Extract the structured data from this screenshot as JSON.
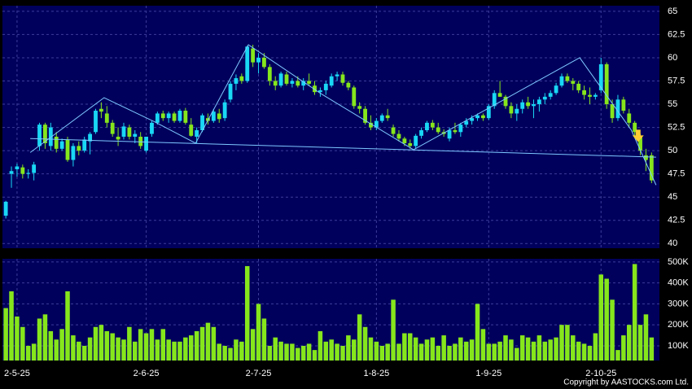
{
  "chart_data": [
    {
      "type": "candlestick",
      "xlim": [
        -0.6,
        116.4
      ],
      "xticks": [
        {
          "value": 2,
          "label": "2-5-25"
        },
        {
          "value": 25,
          "label": "2-6-25"
        },
        {
          "value": 45,
          "label": "2-7-25"
        },
        {
          "value": 66,
          "label": "1-8-25"
        },
        {
          "value": 86,
          "label": "1-9-25"
        },
        {
          "value": 106,
          "label": "2-10-25"
        }
      ],
      "ylim": [
        39.5,
        65.6
      ],
      "yticks": [
        40,
        42.5,
        45,
        47.5,
        50,
        52.5,
        55,
        57.5,
        60,
        62.5,
        65
      ],
      "grid": true,
      "up_color": "#19d7f5",
      "down_color": "#86e61c",
      "ohlc": [
        [
          43.0,
          44.6,
          42.7,
          44.5
        ],
        [
          47.5,
          48.3,
          46.0,
          47.8
        ],
        [
          48.0,
          48.6,
          47.2,
          48.3
        ],
        [
          48.2,
          48.5,
          47.0,
          47.5
        ],
        [
          47.5,
          48.0,
          47.0,
          47.6
        ],
        [
          47.6,
          48.8,
          46.8,
          48.5
        ],
        [
          50.5,
          53.0,
          50.0,
          52.8
        ],
        [
          52.8,
          53.0,
          50.2,
          50.8
        ],
        [
          50.5,
          53.0,
          50.0,
          52.5
        ],
        [
          51.5,
          52.0,
          49.8,
          50.2
        ],
        [
          50.2,
          51.3,
          50.0,
          51.0
        ],
        [
          51.2,
          51.5,
          48.8,
          49.0
        ],
        [
          49.0,
          50.8,
          48.3,
          50.5
        ],
        [
          50.5,
          51.0,
          49.5,
          50.0
        ],
        [
          50.0,
          51.5,
          49.8,
          51.2
        ],
        [
          51.0,
          52.0,
          49.6,
          51.8
        ],
        [
          52.0,
          54.5,
          51.8,
          54.3
        ],
        [
          54.5,
          55.2,
          53.5,
          54.2
        ],
        [
          54.0,
          54.8,
          52.5,
          53.0
        ],
        [
          53.0,
          53.3,
          51.5,
          51.8
        ],
        [
          51.5,
          52.5,
          50.5,
          51.2
        ],
        [
          51.5,
          53.0,
          51.2,
          52.6
        ],
        [
          52.5,
          52.8,
          51.2,
          51.5
        ],
        [
          51.5,
          52.2,
          50.8,
          51.8
        ],
        [
          51.5,
          52.0,
          50.2,
          50.5
        ],
        [
          50.0,
          51.5,
          49.8,
          51.5
        ],
        [
          51.8,
          53.2,
          51.5,
          53.0
        ],
        [
          53.0,
          54.2,
          52.8,
          54.0
        ],
        [
          54.0,
          54.3,
          53.2,
          53.5
        ],
        [
          53.5,
          54.2,
          53.0,
          54.0
        ],
        [
          54.0,
          54.2,
          53.0,
          53.2
        ],
        [
          53.2,
          54.5,
          53.0,
          54.3
        ],
        [
          54.3,
          54.6,
          52.8,
          53.0
        ],
        [
          52.8,
          53.5,
          51.5,
          51.6
        ],
        [
          51.5,
          52.5,
          50.8,
          52.2
        ],
        [
          52.2,
          54.0,
          52.0,
          53.8
        ],
        [
          53.5,
          54.0,
          52.8,
          53.2
        ],
        [
          53.2,
          54.5,
          53.0,
          54.2
        ],
        [
          54.0,
          54.5,
          53.0,
          53.4
        ],
        [
          53.5,
          55.5,
          53.2,
          55.2
        ],
        [
          55.5,
          57.5,
          55.2,
          57.2
        ],
        [
          57.2,
          58.2,
          56.5,
          57.8
        ],
        [
          58.0,
          58.3,
          57.2,
          57.5
        ],
        [
          57.5,
          61.3,
          57.3,
          61.2
        ],
        [
          61.0,
          61.4,
          59.0,
          59.5
        ],
        [
          59.5,
          60.5,
          58.3,
          60.0
        ],
        [
          60.0,
          60.5,
          58.8,
          59.0
        ],
        [
          59.0,
          59.3,
          57.0,
          57.5
        ],
        [
          57.5,
          58.0,
          56.5,
          57.0
        ],
        [
          57.0,
          58.5,
          56.8,
          58.3
        ],
        [
          58.2,
          58.5,
          57.0,
          57.2
        ],
        [
          57.2,
          57.8,
          56.8,
          57.5
        ],
        [
          57.5,
          58.0,
          56.8,
          57.0
        ],
        [
          57.0,
          57.8,
          56.5,
          57.5
        ],
        [
          57.5,
          58.3,
          57.0,
          57.2
        ],
        [
          57.0,
          57.5,
          56.0,
          56.3
        ],
        [
          56.3,
          56.8,
          55.8,
          56.5
        ],
        [
          56.5,
          57.5,
          56.0,
          57.2
        ],
        [
          57.0,
          58.3,
          56.8,
          58.0
        ],
        [
          58.0,
          58.5,
          57.5,
          58.2
        ],
        [
          58.2,
          58.5,
          57.0,
          57.3
        ],
        [
          57.3,
          57.5,
          56.5,
          56.8
        ],
        [
          56.8,
          57.0,
          54.5,
          54.8
        ],
        [
          54.8,
          55.2,
          54.0,
          54.5
        ],
        [
          54.5,
          54.8,
          52.8,
          53.0
        ],
        [
          53.0,
          53.8,
          52.2,
          52.5
        ],
        [
          52.5,
          53.5,
          52.2,
          53.2
        ],
        [
          53.2,
          54.0,
          53.0,
          53.8
        ],
        [
          53.8,
          54.5,
          53.2,
          53.5
        ],
        [
          52.5,
          52.8,
          51.5,
          51.8
        ],
        [
          51.8,
          52.2,
          51.0,
          51.3
        ],
        [
          51.3,
          51.5,
          50.5,
          50.8
        ],
        [
          50.8,
          51.2,
          50.2,
          50.5
        ],
        [
          50.5,
          51.8,
          50.2,
          51.6
        ],
        [
          51.6,
          52.5,
          51.3,
          52.2
        ],
        [
          52.2,
          53.2,
          52.0,
          53.0
        ],
        [
          53.0,
          53.3,
          52.2,
          52.5
        ],
        [
          52.5,
          53.0,
          51.8,
          52.0
        ],
        [
          52.0,
          52.3,
          51.5,
          51.8
        ],
        [
          51.3,
          52.5,
          51.0,
          52.2
        ],
        [
          52.2,
          53.0,
          51.8,
          52.0
        ],
        [
          52.0,
          53.0,
          51.5,
          52.8
        ],
        [
          52.8,
          53.5,
          52.5,
          53.2
        ],
        [
          53.2,
          53.8,
          52.8,
          53.5
        ],
        [
          53.5,
          54.0,
          53.2,
          53.8
        ],
        [
          53.8,
          54.0,
          53.2,
          53.5
        ],
        [
          53.5,
          55.0,
          53.3,
          54.8
        ],
        [
          54.8,
          56.5,
          54.5,
          56.2
        ],
        [
          56.2,
          57.5,
          55.8,
          55.8
        ],
        [
          55.8,
          56.0,
          54.5,
          54.8
        ],
        [
          54.8,
          55.2,
          53.5,
          54.0
        ],
        [
          54.0,
          55.0,
          53.2,
          54.5
        ],
        [
          54.5,
          55.5,
          54.0,
          55.2
        ],
        [
          55.2,
          55.8,
          54.5,
          54.8
        ],
        [
          54.8,
          55.5,
          53.5,
          55.0
        ],
        [
          55.0,
          55.8,
          54.2,
          55.5
        ],
        [
          55.5,
          56.2,
          55.0,
          55.8
        ],
        [
          55.8,
          56.5,
          55.5,
          56.2
        ],
        [
          56.2,
          57.3,
          56.0,
          57.0
        ],
        [
          57.0,
          58.3,
          56.8,
          58.0
        ],
        [
          58.0,
          58.3,
          57.3,
          57.5
        ],
        [
          57.5,
          57.8,
          56.5,
          57.2
        ],
        [
          57.2,
          57.5,
          56.2,
          56.5
        ],
        [
          56.5,
          57.0,
          55.5,
          56.0
        ],
        [
          56.0,
          56.8,
          55.0,
          55.8
        ],
        [
          55.8,
          56.2,
          55.5,
          56.0
        ],
        [
          56.5,
          60.0,
          56.2,
          59.3
        ],
        [
          59.3,
          59.5,
          54.5,
          55.0
        ],
        [
          55.0,
          55.5,
          53.0,
          53.5
        ],
        [
          53.5,
          56.0,
          53.2,
          55.5
        ],
        [
          55.5,
          55.8,
          54.0,
          54.3
        ],
        [
          54.0,
          54.5,
          52.5,
          53.0
        ],
        [
          53.0,
          53.2,
          51.5,
          52.0
        ],
        [
          51.5,
          51.8,
          49.5,
          50.0
        ],
        [
          49.5,
          50.2,
          47.8,
          49.0
        ],
        [
          49.5,
          49.8,
          46.5,
          46.8
        ]
      ],
      "trendlines": [
        {
          "color": "#7ec8ff",
          "points": [
            [
              4.35,
              51.3
            ],
            [
              115.8,
              49.3
            ]
          ]
        },
        {
          "color": "#7ec8ff",
          "points": [
            [
              4.35,
              49.8
            ],
            [
              17.5,
              55.7
            ],
            [
              26.5,
              53.1
            ],
            [
              33.8,
              50.8
            ],
            [
              43.2,
              61.4
            ],
            [
              56.2,
              56.1
            ],
            [
              72.6,
              50.1
            ],
            [
              102.2,
              60.0
            ],
            [
              111.4,
              52.2
            ],
            [
              115.8,
              46.3
            ]
          ]
        }
      ],
      "arrow": {
        "x": 112.6,
        "y": 51.2,
        "color": "#ffcc33"
      }
    },
    {
      "type": "bar",
      "xlim": [
        -0.6,
        116.4
      ],
      "xticks": [
        2,
        25,
        45,
        66,
        86,
        106
      ],
      "ylim": [
        30000,
        515000
      ],
      "yticks": [
        {
          "value": 100000,
          "label": "100K"
        },
        {
          "value": 200000,
          "label": "200K"
        },
        {
          "value": 300000,
          "label": "300K"
        },
        {
          "value": 400000,
          "label": "400K"
        },
        {
          "value": 500000,
          "label": "500K"
        }
      ],
      "grid": true,
      "color": "#86e61c",
      "values": [
        280000,
        360000,
        240000,
        190000,
        100000,
        110000,
        230000,
        250000,
        170000,
        130000,
        180000,
        360000,
        150000,
        120000,
        100000,
        140000,
        190000,
        200000,
        170000,
        160000,
        140000,
        130000,
        190000,
        120000,
        180000,
        160000,
        180000,
        130000,
        180000,
        130000,
        120000,
        120000,
        140000,
        150000,
        170000,
        190000,
        210000,
        190000,
        110000,
        100000,
        90000,
        130000,
        120000,
        480000,
        180000,
        300000,
        230000,
        100000,
        140000,
        120000,
        110000,
        110000,
        90000,
        100000,
        110000,
        80000,
        170000,
        120000,
        130000,
        110000,
        100000,
        150000,
        130000,
        250000,
        190000,
        140000,
        120000,
        100000,
        110000,
        320000,
        110000,
        160000,
        160000,
        140000,
        110000,
        130000,
        140000,
        100000,
        150000,
        100000,
        110000,
        140000,
        120000,
        130000,
        300000,
        180000,
        110000,
        110000,
        120000,
        150000,
        130000,
        90000,
        150000,
        140000,
        120000,
        150000,
        120000,
        130000,
        140000,
        200000,
        200000,
        150000,
        120000,
        110000,
        100000,
        160000,
        440000,
        420000,
        320000,
        80000,
        150000,
        200000,
        490000,
        200000,
        250000,
        140000
      ]
    }
  ],
  "copyright": "Copyright by AASTOCKS.com Ltd."
}
